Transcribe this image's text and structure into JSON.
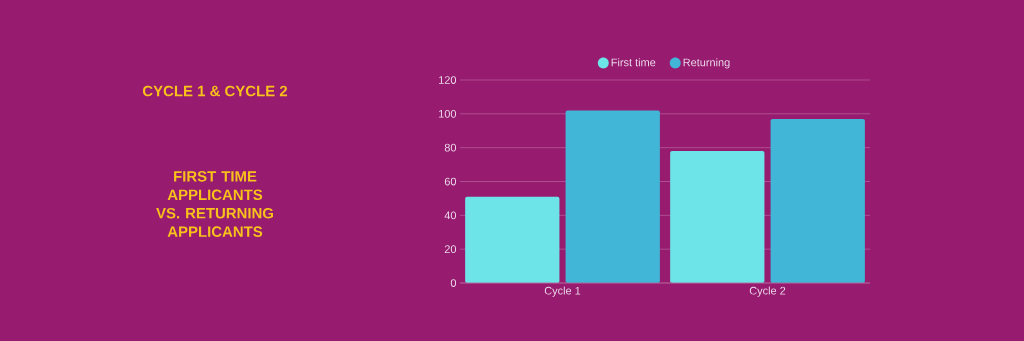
{
  "chart_data": {
    "type": "bar",
    "title": "CYCLE 1  & CYCLE 2",
    "subtitle": "FIRST TIME APPLICANTS VS. RETURNING APPLICANTS",
    "categories": [
      "Cycle 1",
      "Cycle 2"
    ],
    "series": [
      {
        "name": "First time",
        "color": "#6ce4e8",
        "values": [
          51,
          78
        ]
      },
      {
        "name": "Returning",
        "color": "#41b6d6",
        "values": [
          102,
          97
        ]
      }
    ],
    "ylim": [
      0,
      120
    ],
    "yticks": [
      0,
      20,
      40,
      60,
      80,
      100,
      120
    ],
    "grid": "y",
    "legend": "top"
  }
}
